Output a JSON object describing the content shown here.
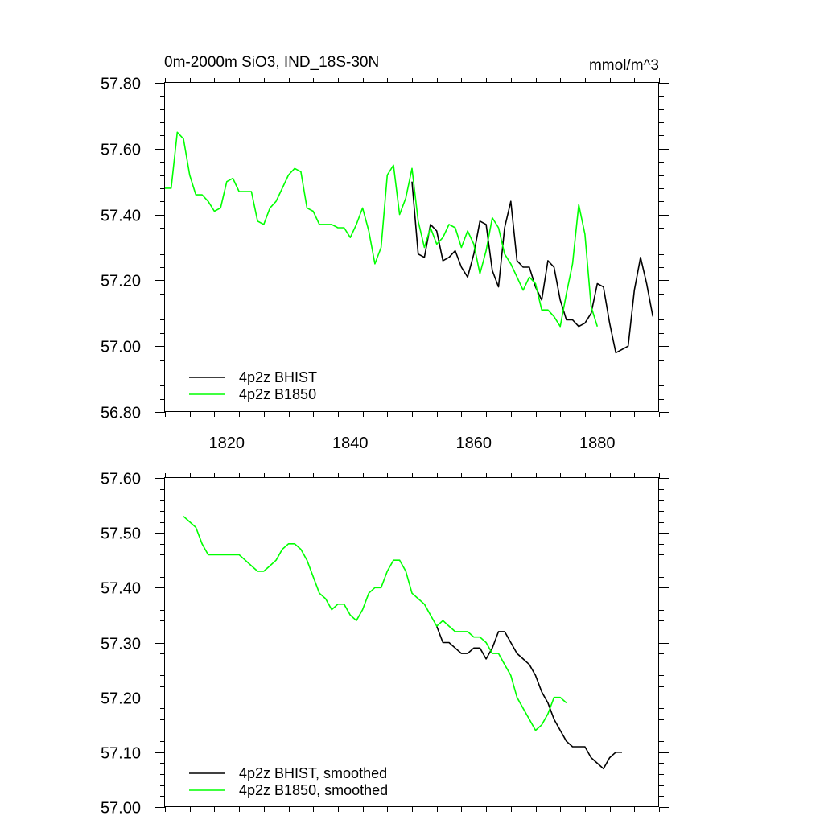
{
  "chart_data": [
    {
      "type": "line",
      "title": "0m-2000m SiO3, IND_18S-30N",
      "units": "mmol/m^3",
      "xlim": [
        1810,
        1890
      ],
      "ylim": [
        56.8,
        57.8
      ],
      "x_ticks": [
        1820,
        1840,
        1860,
        1880
      ],
      "y_ticks": [
        56.8,
        57.0,
        57.2,
        57.4,
        57.6,
        57.8
      ],
      "y_tick_labels": [
        "56.80",
        "57.00",
        "57.20",
        "57.40",
        "57.60",
        "57.80"
      ],
      "series": [
        {
          "name": "4p2z BHIST",
          "color": "#000000",
          "x_start": 1850,
          "values": [
            57.5,
            57.28,
            57.27,
            57.37,
            57.35,
            57.26,
            57.27,
            57.29,
            57.24,
            57.21,
            57.28,
            57.38,
            57.37,
            57.23,
            57.18,
            57.36,
            57.44,
            57.26,
            57.24,
            57.24,
            57.18,
            57.14,
            57.26,
            57.24,
            57.14,
            57.08,
            57.08,
            57.06,
            57.07,
            57.1,
            57.19,
            57.18,
            57.07,
            56.98,
            56.99,
            57.0,
            57.17,
            57.27,
            57.19,
            57.09
          ]
        },
        {
          "name": "4p2z B1850",
          "color": "#00ff00",
          "x_start": 1810,
          "values": [
            57.48,
            57.48,
            57.65,
            57.63,
            57.52,
            57.46,
            57.46,
            57.44,
            57.41,
            57.42,
            57.5,
            57.51,
            57.47,
            57.47,
            57.47,
            57.38,
            57.37,
            57.42,
            57.44,
            57.48,
            57.52,
            57.54,
            57.53,
            57.42,
            57.41,
            57.37,
            57.37,
            57.37,
            57.36,
            57.36,
            57.33,
            57.37,
            57.42,
            57.35,
            57.25,
            57.3,
            57.52,
            57.55,
            57.4,
            57.45,
            57.54,
            57.38,
            57.3,
            57.36,
            57.31,
            57.33,
            57.37,
            57.36,
            57.3,
            57.35,
            57.31,
            57.22,
            57.29,
            57.39,
            57.36,
            57.28,
            57.25,
            57.21,
            57.17,
            57.21,
            57.19,
            57.11,
            57.11,
            57.09,
            57.06,
            57.16,
            57.25,
            57.43,
            57.34,
            57.12,
            57.06
          ]
        }
      ]
    },
    {
      "type": "line",
      "title": "",
      "xlim": [
        1810,
        1890
      ],
      "ylim": [
        57.0,
        57.6
      ],
      "x_ticks": [
        1820,
        1840,
        1860,
        1880
      ],
      "y_ticks": [
        57.0,
        57.1,
        57.2,
        57.3,
        57.4,
        57.5,
        57.6
      ],
      "y_tick_labels": [
        "57.00",
        "57.10",
        "57.20",
        "57.30",
        "57.40",
        "57.50",
        "57.60"
      ],
      "series": [
        {
          "name": "4p2z BHIST, smoothed",
          "color": "#000000",
          "x_start": 1854,
          "values": [
            57.33,
            57.3,
            57.3,
            57.29,
            57.28,
            57.28,
            57.29,
            57.29,
            57.27,
            57.29,
            57.32,
            57.32,
            57.3,
            57.28,
            57.27,
            57.26,
            57.24,
            57.21,
            57.19,
            57.16,
            57.14,
            57.12,
            57.11,
            57.11,
            57.11,
            57.09,
            57.08,
            57.07,
            57.09,
            57.1,
            57.1
          ]
        },
        {
          "name": "4p2z B1850, smoothed",
          "color": "#00ff00",
          "x_start": 1813,
          "values": [
            57.53,
            57.52,
            57.51,
            57.48,
            57.46,
            57.46,
            57.46,
            57.46,
            57.46,
            57.46,
            57.45,
            57.44,
            57.43,
            57.43,
            57.44,
            57.45,
            57.47,
            57.48,
            57.48,
            57.47,
            57.45,
            57.42,
            57.39,
            57.38,
            57.36,
            57.37,
            57.37,
            57.35,
            57.34,
            57.36,
            57.39,
            57.4,
            57.4,
            57.43,
            57.45,
            57.45,
            57.43,
            57.39,
            57.38,
            57.37,
            57.35,
            57.33,
            57.34,
            57.33,
            57.32,
            57.32,
            57.32,
            57.31,
            57.31,
            57.3,
            57.28,
            57.28,
            57.26,
            57.24,
            57.2,
            57.18,
            57.16,
            57.14,
            57.15,
            57.17,
            57.2,
            57.2,
            57.19
          ]
        }
      ]
    }
  ]
}
